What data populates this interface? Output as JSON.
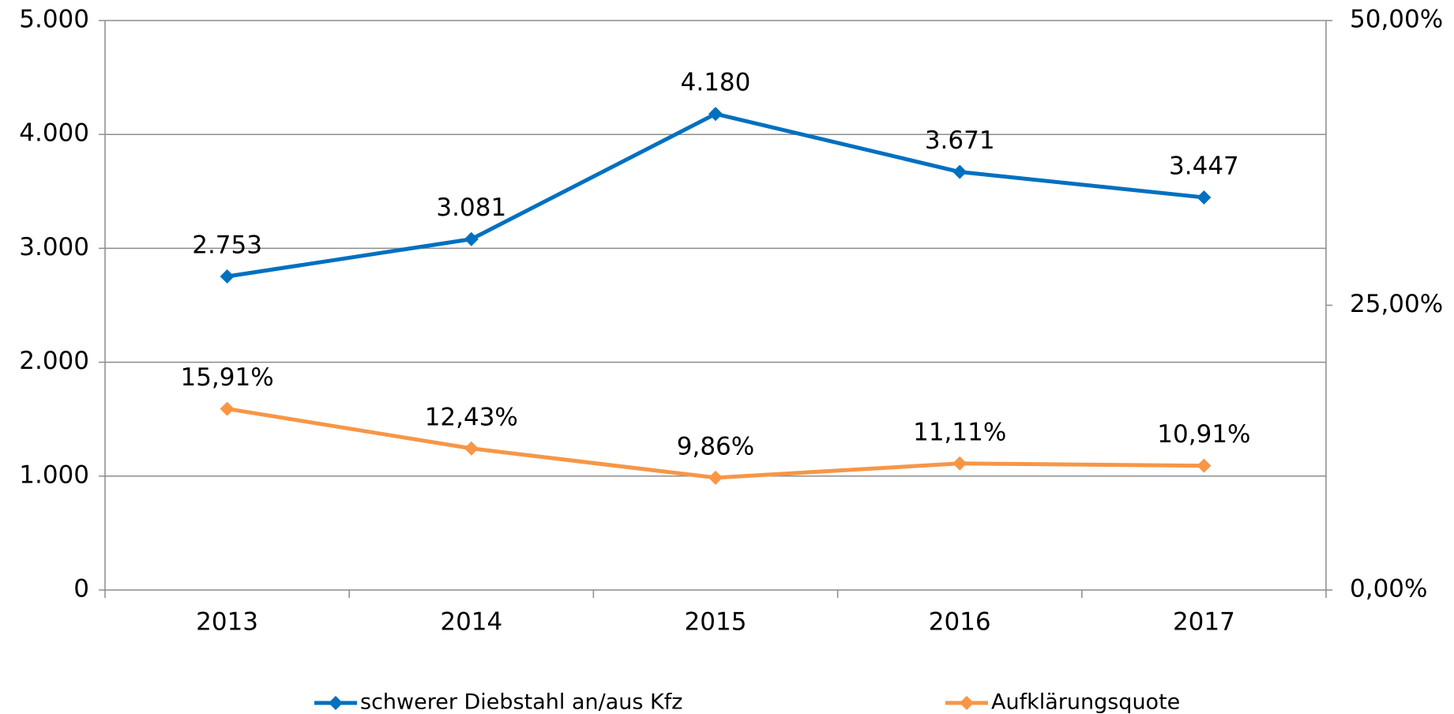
{
  "chart_data": {
    "type": "line",
    "categories": [
      "2013",
      "2014",
      "2015",
      "2016",
      "2017"
    ],
    "series": [
      {
        "name": "schwerer Diebstahl an/aus Kfz",
        "color": "#0070c0",
        "values": [
          2753,
          3081,
          4180,
          3671,
          3447
        ],
        "value_labels": [
          "2.753",
          "3.081",
          "4.180",
          "3.671",
          "3.447"
        ]
      },
      {
        "name": "Aufklärungsquote",
        "color": "#f79646",
        "axis": "y2",
        "values": [
          15.91,
          12.43,
          9.86,
          11.11,
          10.91
        ],
        "value_labels": [
          "15,91%",
          "12,43%",
          "9,86%",
          "11,11%",
          "10,91%"
        ]
      }
    ],
    "ylim": [
      0,
      5000
    ],
    "yticks": [
      0,
      {
        "value": 1000,
        "label": "1.000"
      },
      {
        "value": 2000,
        "label": "2.000"
      },
      {
        "value": 3000,
        "label": "3.000"
      },
      {
        "value": 4000,
        "label": "4.000"
      },
      {
        "value": 5000,
        "label": "5.000"
      }
    ],
    "y2lim": [
      0,
      50
    ],
    "y2ticks": [
      {
        "value": 0,
        "label": "0,00%"
      },
      {
        "value": 25,
        "label": "25,00%"
      },
      {
        "value": 50,
        "label": "50,00%"
      }
    ],
    "grid": true,
    "legend": "bottom"
  }
}
